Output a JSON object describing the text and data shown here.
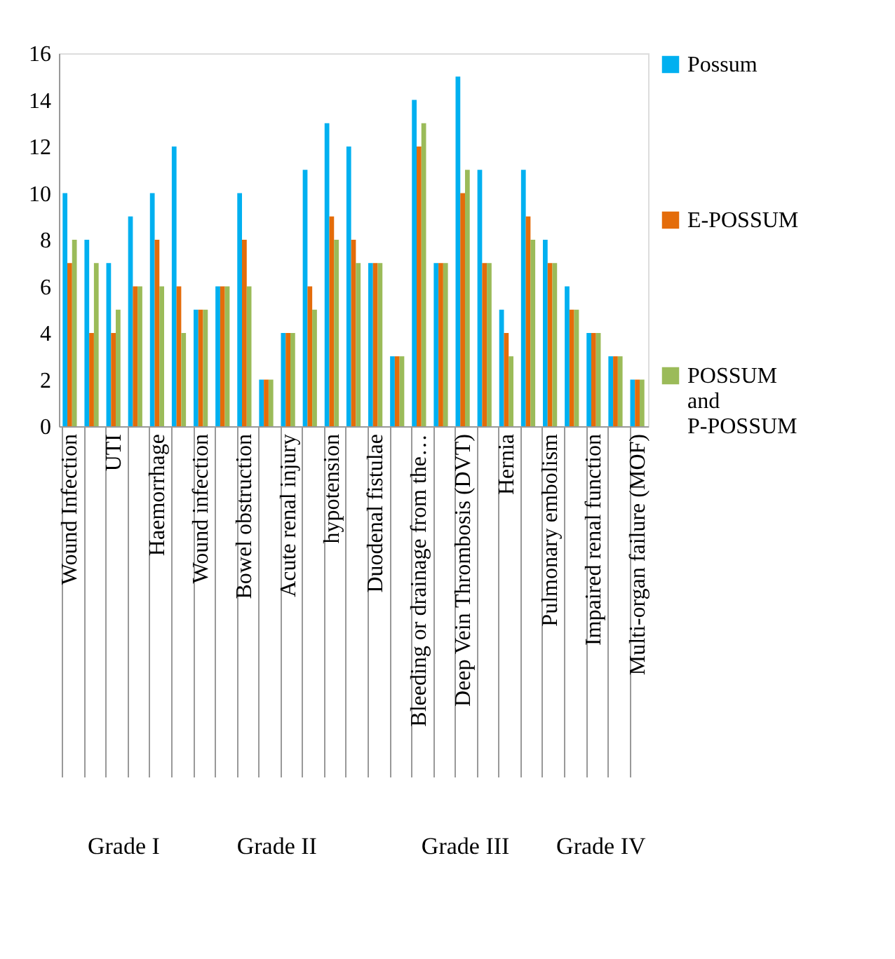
{
  "chart_data": {
    "type": "bar",
    "categories": [
      "Wound Infection",
      null,
      "UTI",
      null,
      "Haemorrhage",
      null,
      "Wound infection",
      null,
      "Bowel obstruction",
      null,
      "Acute renal injury",
      null,
      "hypotension",
      null,
      "Duodenal fistulae",
      null,
      "Bleeding or drainage from the…",
      null,
      "Deep Vein Thrombosis (DVT)",
      null,
      "Hernia",
      null,
      "Pulmonary embolism",
      null,
      "Impaired renal function",
      null,
      "Multi-organ failure (MOF)"
    ],
    "series": [
      {
        "name": "Possum",
        "color": "#00b0f0",
        "values": [
          10,
          8,
          7,
          9,
          10,
          12,
          5,
          6,
          10,
          2,
          4,
          11,
          13,
          12,
          7,
          3,
          14,
          7,
          15,
          11,
          5,
          11,
          8,
          6,
          4,
          3,
          2
        ]
      },
      {
        "name": "E-POSSUM",
        "color": "#e46c0a",
        "values": [
          7,
          4,
          4,
          6,
          8,
          6,
          5,
          6,
          8,
          2,
          4,
          6,
          9,
          8,
          7,
          3,
          12,
          7,
          10,
          7,
          4,
          9,
          7,
          5,
          4,
          3,
          2
        ]
      },
      {
        "name": "POSSUM and P-POSSUM",
        "color": "#9bbb59",
        "values": [
          8,
          7,
          5,
          6,
          6,
          4,
          5,
          6,
          6,
          2,
          4,
          5,
          8,
          7,
          7,
          3,
          13,
          7,
          11,
          7,
          3,
          8,
          7,
          5,
          4,
          3,
          2
        ]
      }
    ],
    "annotations": [
      "Grade I",
      "Grade II",
      "Grade III",
      "Grade IV"
    ],
    "ylim": [
      0,
      16
    ],
    "yticks": [
      0,
      2,
      4,
      6,
      8,
      10,
      12,
      14,
      16
    ],
    "grid": false,
    "legend": "right"
  }
}
